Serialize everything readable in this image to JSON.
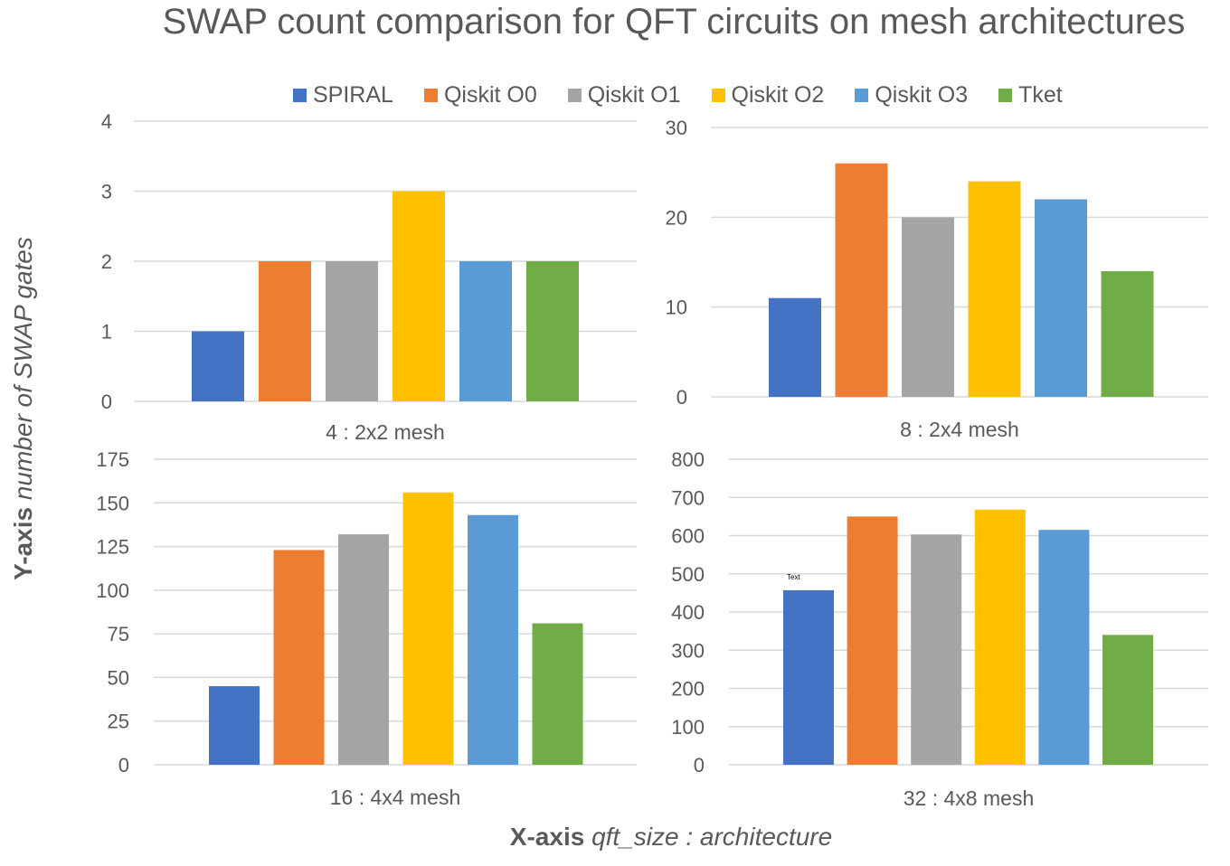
{
  "title": "SWAP count comparison for QFT circuits on mesh architectures",
  "y_axis": {
    "prefix": "Y-axis",
    "description": "number of SWAP gates"
  },
  "x_axis": {
    "prefix": "X-axis",
    "description": "qft_size : architecture"
  },
  "legend": [
    {
      "name": "SPIRAL",
      "color": "#4472C4"
    },
    {
      "name": "Qiskit O0",
      "color": "#ED7D31"
    },
    {
      "name": "Qiskit O1",
      "color": "#A5A5A5"
    },
    {
      "name": "Qiskit O2",
      "color": "#FFC000"
    },
    {
      "name": "Qiskit O3",
      "color": "#5B9BD5"
    },
    {
      "name": "Tket",
      "color": "#70AD47"
    }
  ],
  "chart_data": [
    {
      "type": "bar",
      "xlabel": "4 : 2x2 mesh",
      "series": [
        "SPIRAL",
        "Qiskit O0",
        "Qiskit O1",
        "Qiskit O2",
        "Qiskit O3",
        "Tket"
      ],
      "values": [
        1,
        2,
        2,
        3,
        2,
        2
      ],
      "ylim": [
        0,
        4
      ],
      "yticks": [
        0,
        1,
        2,
        3,
        4
      ],
      "grid": true
    },
    {
      "type": "bar",
      "xlabel": "8 : 2x4 mesh",
      "series": [
        "SPIRAL",
        "Qiskit O0",
        "Qiskit O1",
        "Qiskit O2",
        "Qiskit O3",
        "Tket"
      ],
      "values": [
        11,
        26,
        20,
        24,
        22,
        14
      ],
      "ylim": [
        0,
        30
      ],
      "yticks": [
        0,
        10,
        20,
        30
      ],
      "grid": true
    },
    {
      "type": "bar",
      "xlabel": "16 : 4x4 mesh",
      "series": [
        "SPIRAL",
        "Qiskit O0",
        "Qiskit O1",
        "Qiskit O2",
        "Qiskit O3",
        "Tket"
      ],
      "values": [
        45,
        123,
        132,
        156,
        143,
        81
      ],
      "ylim": [
        0,
        175
      ],
      "yticks": [
        0,
        25,
        50,
        75,
        100,
        125,
        150,
        175
      ],
      "grid": true
    },
    {
      "type": "bar",
      "xlabel": "32 : 4x8 mesh",
      "series": [
        "SPIRAL",
        "Qiskit O0",
        "Qiskit O1",
        "Qiskit O2",
        "Qiskit O3",
        "Tket"
      ],
      "values": [
        457,
        650,
        603,
        668,
        615,
        340
      ],
      "ylim": [
        0,
        800
      ],
      "yticks": [
        0,
        100,
        200,
        300,
        400,
        500,
        600,
        700,
        800
      ],
      "grid": true,
      "annotation": {
        "text": "Text",
        "series_index": 0
      }
    }
  ]
}
